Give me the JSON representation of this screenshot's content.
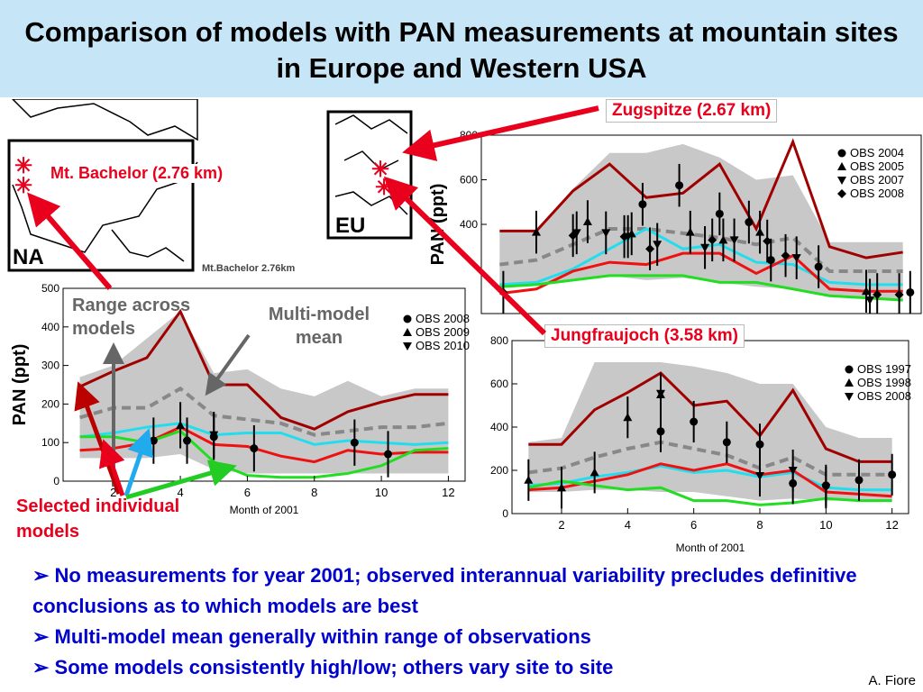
{
  "title": "Comparison of models with PAN measurements at mountain sites in Europe and Western USA",
  "labels": {
    "zugspitze": "Zugspitze (2.67 km)",
    "bachelor": "Mt. Bachelor (2.76 km)",
    "jungfraujoch": "Jungfraujoch (3.58 km)",
    "range": "Range across models",
    "mmm": "Multi-model mean",
    "selected": "Selected individual models",
    "na": "NA",
    "eu": "EU",
    "mapcaption": "Mt.Bachelor 2.76km"
  },
  "bullets": [
    "No measurements for year 2001; observed interannual variability precludes definitive conclusions as to which models are best",
    "Multi-model mean generally within range of observations",
    "Some models consistently high/low; others vary site to site"
  ],
  "credit": "A. Fiore",
  "colors": {
    "title_bg": "#c6e6f8",
    "bullet_text": "#0000cc",
    "annotation_red": "#e8001c",
    "model_darkred": "#a00000",
    "model_red": "#ee1111",
    "model_cyan": "#22ddee",
    "model_green": "#22dd22",
    "mean_gray": "#888888",
    "range_fill": "#c8c8c8"
  },
  "chart_data": [
    {
      "type": "line",
      "site": "Zugspitze (2.67 km)",
      "ylabel": "PAN (ppt)",
      "xlabel": "",
      "x": [
        1,
        2,
        3,
        4,
        5,
        6,
        7,
        8,
        9,
        10,
        11,
        12
      ],
      "xlim": [
        0.5,
        12.5
      ],
      "ylim": [
        0,
        800
      ],
      "yticks": [
        400,
        600,
        800
      ],
      "range_upper": [
        370,
        370,
        560,
        720,
        720,
        760,
        700,
        600,
        620,
        320,
        320,
        320
      ],
      "range_lower": [
        120,
        130,
        150,
        170,
        150,
        160,
        140,
        120,
        110,
        80,
        70,
        60
      ],
      "series": [
        {
          "color": "#a00000",
          "values": [
            370,
            370,
            550,
            670,
            520,
            540,
            670,
            380,
            770,
            300,
            250,
            275
          ]
        },
        {
          "color": "#888888",
          "dash": true,
          "values": [
            220,
            240,
            310,
            380,
            380,
            360,
            340,
            310,
            340,
            190,
            190,
            190
          ]
        },
        {
          "color": "#22ddee",
          "values": [
            130,
            140,
            200,
            290,
            380,
            290,
            310,
            230,
            220,
            140,
            130,
            130
          ]
        },
        {
          "color": "#ee1111",
          "values": [
            90,
            110,
            190,
            230,
            220,
            270,
            270,
            180,
            260,
            110,
            100,
            100
          ]
        },
        {
          "color": "#22dd22",
          "values": [
            120,
            130,
            150,
            170,
            170,
            170,
            140,
            140,
            110,
            80,
            70,
            60
          ]
        }
      ],
      "obs": [
        {
          "name": "OBS 2004",
          "marker": "circle",
          "points": [
            [
              4.9,
              490
            ],
            [
              5.9,
              575
            ],
            [
              7.0,
              447
            ],
            [
              7.8,
              410
            ],
            [
              8.4,
              240
            ],
            [
              9.7,
              210
            ],
            [
              12.2,
              95
            ]
          ]
        },
        {
          "name": "OBS 2005",
          "marker": "triangle-up",
          "points": [
            [
              2.0,
              365
            ],
            [
              3.4,
              412
            ],
            [
              4.6,
              358
            ],
            [
              6.2,
              365
            ],
            [
              7.1,
              330
            ],
            [
              8.1,
              365
            ],
            [
              11.0,
              100
            ]
          ]
        },
        {
          "name": "OBS 2007",
          "marker": "triangle-down",
          "points": [
            [
              3.1,
              362
            ],
            [
              3.9,
              362
            ],
            [
              4.5,
              345
            ],
            [
              5.3,
              310
            ],
            [
              6.6,
              296
            ],
            [
              7.4,
              330
            ],
            [
              9.1,
              250
            ],
            [
              11.1,
              60
            ]
          ]
        },
        {
          "name": "OBS 2008",
          "marker": "diamond",
          "points": [
            [
              1.1,
              95
            ],
            [
              3.0,
              350
            ],
            [
              4.4,
              345
            ],
            [
              5.1,
              290
            ],
            [
              6.8,
              330
            ],
            [
              8.3,
              325
            ],
            [
              8.8,
              260
            ],
            [
              11.3,
              85
            ],
            [
              11.9,
              85
            ]
          ]
        }
      ]
    },
    {
      "type": "line",
      "site": "Mt. Bachelor (2.76 km)",
      "ylabel": "PAN (ppt)",
      "xlabel": "Month of 2001",
      "x": [
        1,
        2,
        3,
        4,
        5,
        6,
        7,
        8,
        9,
        10,
        11,
        12
      ],
      "xlim": [
        0.5,
        12.5
      ],
      "ylim": [
        0,
        500
      ],
      "yticks": [
        0,
        100,
        200,
        300,
        400,
        500
      ],
      "xticks": [
        2,
        4,
        6,
        8,
        10,
        12
      ],
      "range_upper": [
        270,
        300,
        370,
        440,
        280,
        290,
        240,
        220,
        260,
        220,
        240,
        240
      ],
      "range_lower": [
        60,
        60,
        60,
        70,
        30,
        20,
        20,
        20,
        20,
        20,
        20,
        20
      ],
      "series": [
        {
          "color": "#a00000",
          "values": [
            245,
            285,
            320,
            440,
            250,
            250,
            165,
            135,
            180,
            205,
            225,
            225
          ]
        },
        {
          "color": "#888888",
          "dash": true,
          "values": [
            165,
            190,
            190,
            240,
            170,
            160,
            150,
            120,
            130,
            140,
            140,
            150
          ]
        },
        {
          "color": "#22ddee",
          "values": [
            115,
            125,
            140,
            150,
            120,
            125,
            125,
            95,
            105,
            100,
            95,
            100
          ]
        },
        {
          "color": "#ee1111",
          "values": [
            80,
            85,
            100,
            140,
            95,
            90,
            65,
            50,
            80,
            70,
            75,
            75
          ]
        },
        {
          "color": "#22dd22",
          "values": [
            115,
            115,
            100,
            130,
            50,
            15,
            10,
            10,
            20,
            40,
            80,
            85
          ]
        }
      ],
      "obs": [
        {
          "name": "OBS 2008",
          "marker": "circle",
          "points": [
            [
              3.2,
              105
            ],
            [
              4.2,
              105
            ],
            [
              5.0,
              115
            ],
            [
              6.2,
              85
            ],
            [
              9.2,
              100
            ],
            [
              10.2,
              70
            ]
          ]
        },
        {
          "name": "OBS 2009",
          "marker": "triangle-up",
          "points": [
            [
              4.0,
              145
            ]
          ]
        },
        {
          "name": "OBS 2010",
          "marker": "triangle-down",
          "points": [
            [
              5.0,
              120
            ]
          ]
        }
      ]
    },
    {
      "type": "line",
      "site": "Jungfraujoch (3.58 km)",
      "ylabel": "",
      "xlabel": "Month of 2001",
      "x": [
        1,
        2,
        3,
        4,
        5,
        6,
        7,
        8,
        9,
        10,
        11,
        12
      ],
      "xlim": [
        0.5,
        12.5
      ],
      "ylim": [
        0,
        800
      ],
      "yticks": [
        0,
        200,
        400,
        600,
        800
      ],
      "xticks": [
        2,
        4,
        6,
        8,
        10,
        12
      ],
      "range_upper": [
        330,
        350,
        700,
        700,
        700,
        680,
        650,
        600,
        600,
        400,
        350,
        350
      ],
      "range_lower": [
        100,
        100,
        110,
        110,
        100,
        100,
        80,
        60,
        70,
        60,
        60,
        60
      ],
      "series": [
        {
          "color": "#a00000",
          "values": [
            320,
            320,
            480,
            560,
            650,
            500,
            520,
            360,
            570,
            300,
            240,
            240
          ]
        },
        {
          "color": "#888888",
          "dash": true,
          "values": [
            190,
            210,
            260,
            300,
            330,
            300,
            270,
            210,
            260,
            180,
            180,
            180
          ]
        },
        {
          "color": "#22ddee",
          "values": [
            130,
            140,
            170,
            190,
            220,
            190,
            200,
            170,
            190,
            120,
            110,
            110
          ]
        },
        {
          "color": "#ee1111",
          "values": [
            110,
            120,
            150,
            180,
            230,
            200,
            230,
            180,
            200,
            100,
            90,
            80
          ]
        },
        {
          "color": "#22dd22",
          "values": [
            120,
            150,
            130,
            110,
            120,
            60,
            60,
            40,
            50,
            70,
            60,
            60
          ]
        }
      ],
      "obs": [
        {
          "name": "OBS 1997",
          "marker": "circle",
          "points": [
            [
              5.0,
              380
            ],
            [
              6.0,
              425
            ],
            [
              7.0,
              330
            ],
            [
              8.0,
              320
            ],
            [
              9.0,
              140
            ],
            [
              10.0,
              130
            ],
            [
              11.0,
              155
            ],
            [
              12.0,
              180
            ]
          ]
        },
        {
          "name": "OBS 1998",
          "marker": "triangle-up",
          "points": [
            [
              1.0,
              155
            ],
            [
              2.0,
              120
            ],
            [
              3.0,
              190
            ],
            [
              4.0,
              445
            ],
            [
              5.0,
              550
            ]
          ]
        },
        {
          "name": "OBS 2008",
          "marker": "triangle-down",
          "points": [
            [
              5.0,
              555
            ],
            [
              8.0,
              175
            ],
            [
              9.0,
              200
            ],
            [
              10.0,
              120
            ]
          ]
        }
      ]
    }
  ]
}
